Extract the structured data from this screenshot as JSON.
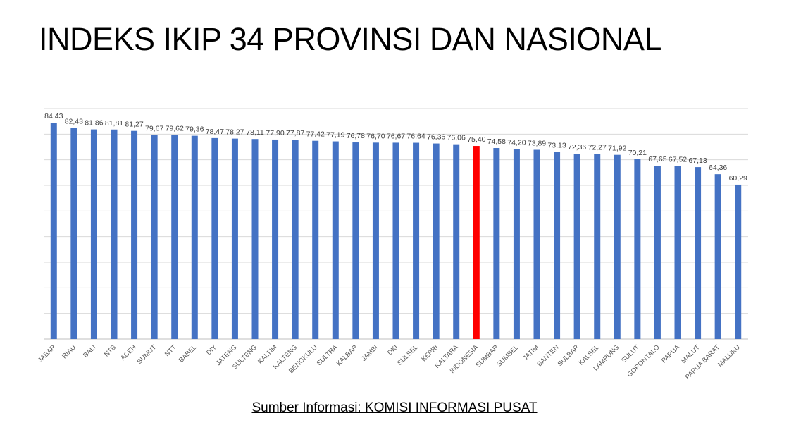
{
  "chart_data": {
    "type": "bar",
    "title": "INDEKS IKIP 34 PROVINSI DAN NASIONAL",
    "xlabel": "",
    "ylabel": "",
    "ylim": [
      0,
      90
    ],
    "grid": true,
    "categories": [
      "JABAR",
      "RIAU",
      "BALI",
      "NTB",
      "ACEH",
      "SUMUT",
      "NTT",
      "BABEL",
      "DIY",
      "JATENG",
      "SULTENG",
      "KALTIM",
      "KALTENG",
      "BENGKULU",
      "SULTRA",
      "KALBAR",
      "JAMBI",
      "DKI",
      "SULSEL",
      "KEPRI",
      "KALTARA",
      "INDONESIA",
      "SUMBAR",
      "SUMSEL",
      "JATIM",
      "BANTEN",
      "SULBAR",
      "KALSEL",
      "LAMPUNG",
      "SULUT",
      "GORONTALO",
      "PAPUA",
      "MALUT",
      "PAPUA BARAT",
      "MALUKU"
    ],
    "values": [
      84.43,
      82.43,
      81.86,
      81.81,
      81.27,
      79.67,
      79.62,
      79.36,
      78.47,
      78.27,
      78.11,
      77.9,
      77.87,
      77.42,
      77.19,
      76.78,
      76.7,
      76.67,
      76.64,
      76.36,
      76.06,
      75.4,
      74.58,
      74.2,
      73.89,
      73.13,
      72.36,
      72.27,
      71.92,
      70.21,
      67.65,
      67.52,
      67.13,
      64.36,
      60.29
    ],
    "data_labels": [
      "84,43",
      "82,43",
      "81,86",
      "81,81",
      "81,27",
      "79,67",
      "79,62",
      "79,36",
      "78,47",
      "78,27",
      "78,11",
      "77,90",
      "77,87",
      "77,42",
      "77,19",
      "76,78",
      "76,70",
      "76,67",
      "76,64",
      "76,36",
      "76,06",
      "75,40",
      "74,58",
      "74,20",
      "73,89",
      "73,13",
      "72,36",
      "72,27",
      "71,92",
      "70,21",
      "67,65",
      "67,52",
      "67,13",
      "64,36",
      "60,29"
    ],
    "highlight": "INDONESIA",
    "colors": {
      "bar": "#4472C4",
      "highlight": "#FF0000",
      "grid": "#D9D9D9"
    }
  },
  "source": "Sumber Informasi: KOMISI INFORMASI PUSAT"
}
